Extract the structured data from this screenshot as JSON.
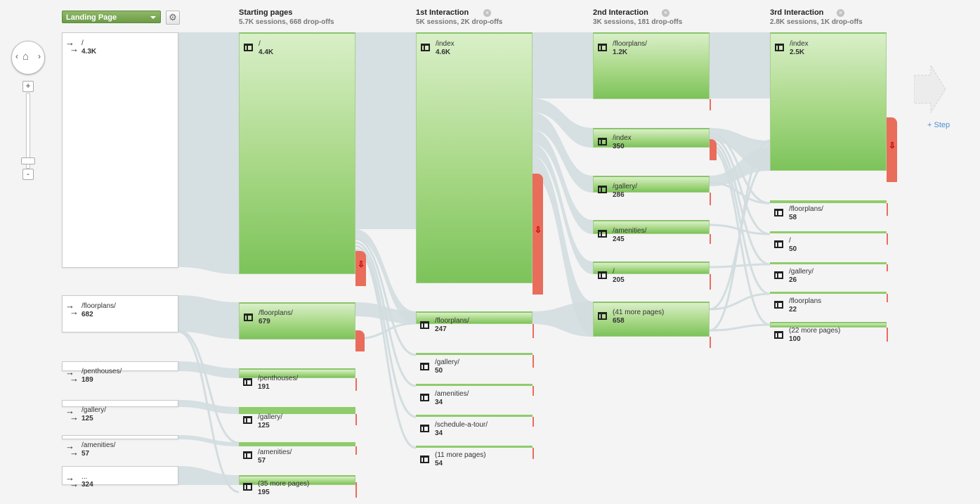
{
  "dimension_selector": {
    "label": "Landing Page"
  },
  "settings": {
    "icon": "gear-icon"
  },
  "zoom": {
    "plus": "+",
    "minus": "-",
    "icon": "home-icon"
  },
  "columns": [
    {
      "title": "Starting pages",
      "subtitle": "5.7K sessions, 668 drop-offs"
    },
    {
      "title": "1st Interaction",
      "subtitle": "5K sessions, 2K drop-offs"
    },
    {
      "title": "2nd Interaction",
      "subtitle": "3K sessions, 181 drop-offs"
    },
    {
      "title": "3rd Interaction",
      "subtitle": "2.8K sessions, 1K drop-offs"
    }
  ],
  "sources": [
    {
      "label": "/",
      "value": "4.3K"
    },
    {
      "label": "/floorplans/",
      "value": "682"
    },
    {
      "label": "/penthouses/",
      "value": "189"
    },
    {
      "label": "/gallery/",
      "value": "125"
    },
    {
      "label": "/amenities/",
      "value": "57"
    },
    {
      "label": "...",
      "value": "324"
    }
  ],
  "starting_pages": [
    {
      "label": "/",
      "value": "4.4K"
    },
    {
      "label": "/floorplans/",
      "value": "679"
    },
    {
      "label": "/penthouses/",
      "value": "191"
    },
    {
      "label": "/gallery/",
      "value": "125"
    },
    {
      "label": "/amenities/",
      "value": "57"
    },
    {
      "label": "(35 more pages)",
      "value": "195"
    }
  ],
  "interaction_1": [
    {
      "label": "/index",
      "value": "4.6K"
    },
    {
      "label": "/floorplans/",
      "value": "247"
    },
    {
      "label": "/gallery/",
      "value": "50"
    },
    {
      "label": "/amenities/",
      "value": "34"
    },
    {
      "label": "/schedule-a-tour/",
      "value": "34"
    },
    {
      "label": "(11 more pages)",
      "value": "54"
    }
  ],
  "interaction_2": [
    {
      "label": "/floorplans/",
      "value": "1.2K"
    },
    {
      "label": "/index",
      "value": "350"
    },
    {
      "label": "/gallery/",
      "value": "286"
    },
    {
      "label": "/amenities/",
      "value": "245"
    },
    {
      "label": "/",
      "value": "205"
    },
    {
      "label": "(41 more pages)",
      "value": "658"
    }
  ],
  "interaction_3": [
    {
      "label": "/index",
      "value": "2.5K"
    },
    {
      "label": "/floorplans/",
      "value": "58"
    },
    {
      "label": "/",
      "value": "50"
    },
    {
      "label": "/gallery/",
      "value": "26"
    },
    {
      "label": "/floorplans",
      "value": "22"
    },
    {
      "label": "(22 more pages)",
      "value": "100"
    }
  ],
  "add_step": {
    "label": "+ Step"
  },
  "colors": {
    "node_green": "#7cc35a",
    "drop_red": "#e96d5b",
    "link_gray": "#d3dde0"
  }
}
